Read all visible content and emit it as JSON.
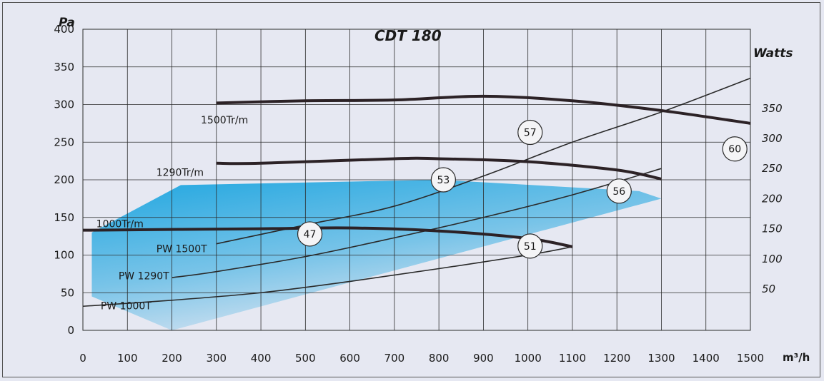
{
  "chart_data": {
    "type": "line",
    "title": "CDT 180",
    "xlabel": "m³/h",
    "ylabel": "Pa",
    "y2label": "Watts",
    "xlim": [
      0,
      1500
    ],
    "ylim": [
      0,
      400
    ],
    "x_ticks": [
      "0",
      "100",
      "200",
      "300",
      "400",
      "500",
      "600",
      "700",
      "800",
      "900",
      "1000",
      "1100",
      "1200",
      "1300",
      "1400",
      "1500"
    ],
    "y_ticks": [
      "0",
      "50",
      "100",
      "150",
      "200",
      "250",
      "300",
      "350",
      "400"
    ],
    "y2_ticks": [
      {
        "label": "50",
        "y": 55
      },
      {
        "label": "100",
        "y": 95
      },
      {
        "label": "150",
        "y": 135
      },
      {
        "label": "200",
        "y": 175
      },
      {
        "label": "250",
        "y": 215
      },
      {
        "label": "300",
        "y": 255
      },
      {
        "label": "350",
        "y": 295
      }
    ],
    "grid": true,
    "operating_zone": {
      "color": "#1fa6e0",
      "points": [
        [
          20,
          120
        ],
        [
          20,
          45
        ],
        [
          200,
          0
        ],
        [
          1300,
          175
        ],
        [
          1250,
          185
        ],
        [
          800,
          200
        ],
        [
          220,
          193
        ],
        [
          20,
          130
        ]
      ]
    },
    "pressure_curves": [
      {
        "name": "1500Tr/m",
        "label": "1500Tr/m",
        "label_at": [
          265,
          275
        ],
        "points": [
          [
            300,
            302
          ],
          [
            500,
            305
          ],
          [
            700,
            306
          ],
          [
            900,
            311
          ],
          [
            1100,
            305
          ],
          [
            1300,
            292
          ],
          [
            1500,
            275
          ]
        ]
      },
      {
        "name": "1290Tr/m",
        "label": "1290Tr/m",
        "label_at": [
          165,
          205
        ],
        "points": [
          [
            300,
            222
          ],
          [
            400,
            222
          ],
          [
            700,
            228
          ],
          [
            800,
            228
          ],
          [
            1000,
            224
          ],
          [
            1200,
            213
          ],
          [
            1300,
            201
          ]
        ]
      },
      {
        "name": "1000Tr/m",
        "label": "1000Tr/m",
        "label_at": [
          30,
          137
        ],
        "points": [
          [
            0,
            133
          ],
          [
            400,
            135
          ],
          [
            600,
            136
          ],
          [
            800,
            132
          ],
          [
            1000,
            122
          ],
          [
            1100,
            111
          ]
        ]
      }
    ],
    "power_curves": [
      {
        "name": "PW 1500T",
        "label": "PW 1500T",
        "label_at": [
          165,
          104
        ],
        "points": [
          [
            300,
            115
          ],
          [
            500,
            140
          ],
          [
            700,
            165
          ],
          [
            900,
            205
          ],
          [
            1100,
            250
          ],
          [
            1300,
            290
          ],
          [
            1500,
            335
          ]
        ]
      },
      {
        "name": "PW 1290T",
        "label": "PW 1290T",
        "label_at": [
          80,
          68
        ],
        "points": [
          [
            200,
            70
          ],
          [
            300,
            78
          ],
          [
            500,
            98
          ],
          [
            700,
            123
          ],
          [
            900,
            150
          ],
          [
            1100,
            180
          ],
          [
            1300,
            215
          ]
        ]
      },
      {
        "name": "PW 1000T",
        "label": "PW 1000T",
        "label_at": [
          40,
          28
        ],
        "points": [
          [
            0,
            32
          ],
          [
            200,
            40
          ],
          [
            400,
            50
          ],
          [
            600,
            65
          ],
          [
            800,
            82
          ],
          [
            1000,
            100
          ],
          [
            1100,
            111
          ]
        ]
      }
    ],
    "efficiency_labels": [
      {
        "label": "47",
        "x": 510,
        "y": 128
      },
      {
        "label": "51",
        "x": 1005,
        "y": 112
      },
      {
        "label": "53",
        "x": 810,
        "y": 200
      },
      {
        "label": "56",
        "x": 1205,
        "y": 185
      },
      {
        "label": "57",
        "x": 1005,
        "y": 263
      },
      {
        "label": "60",
        "x": 1465,
        "y": 241
      }
    ]
  }
}
